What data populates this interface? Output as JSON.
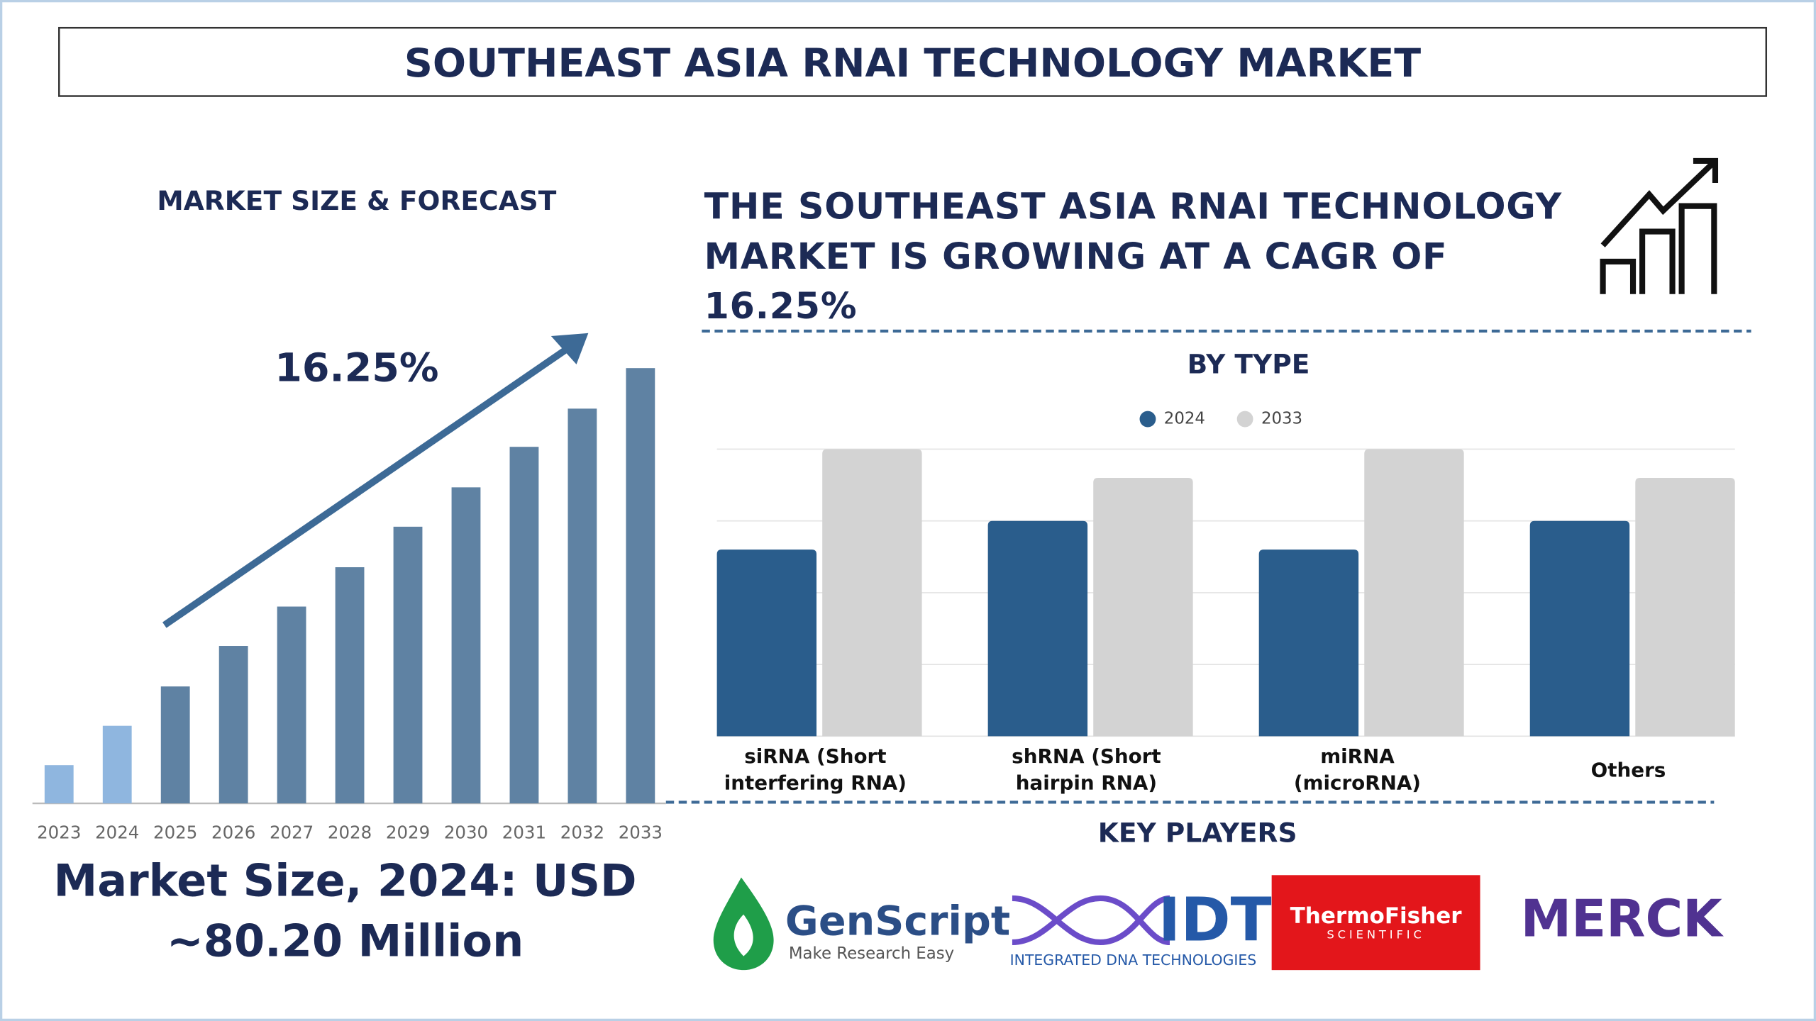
{
  "title": "SOUTHEAST ASIA RNAI TECHNOLOGY MARKET",
  "headline": "THE SOUTHEAST ASIA RNAI TECHNOLOGY MARKET IS GROWING AT A CAGR OF 16.25%",
  "market_size": "Market Size, 2024: USD ~80.20 Million",
  "chart_data": [
    {
      "type": "bar",
      "title": "MARKET SIZE & FORECAST",
      "annotation": "16.25%",
      "categories": [
        "2023",
        "2024",
        "2025",
        "2026",
        "2027",
        "2028",
        "2029",
        "2030",
        "2031",
        "2032",
        "2033"
      ],
      "values": [
        33,
        67,
        101,
        136,
        170,
        204,
        239,
        273,
        308,
        341,
        376
      ],
      "colors": [
        "#8fb6df",
        "#8fb6df",
        "#5f82a3",
        "#5f82a3",
        "#5f82a3",
        "#5f82a3",
        "#5f82a3",
        "#5f82a3",
        "#5f82a3",
        "#5f82a3",
        "#5f82a3"
      ]
    },
    {
      "type": "grouped-bar",
      "title": "BY TYPE",
      "categories": [
        "siRNA (Short interfering RNA)",
        "shRNA (Short hairpin RNA)",
        "miRNA (microRNA)",
        "Others"
      ],
      "series": [
        {
          "name": "2024",
          "color": "#2a5d8c",
          "values": [
            2.6,
            3.0,
            2.6,
            3.0
          ]
        },
        {
          "name": "2033",
          "color": "#d3d3d3",
          "values": [
            4.0,
            3.6,
            4.0,
            3.6
          ]
        }
      ],
      "ylim": [
        0,
        4
      ],
      "yticks": [
        0,
        1,
        2,
        3,
        4
      ],
      "grid": true
    }
  ],
  "key_players": {
    "title": "KEY PLAYERS",
    "logos": [
      {
        "name": "GenScript",
        "tagline": "Make Research Easy"
      },
      {
        "name": "IDT",
        "tagline": "INTEGRATED DNA TECHNOLOGIES"
      },
      {
        "name": "ThermoFisher",
        "tagline": "SCIENTIFIC"
      },
      {
        "name": "MERCK"
      }
    ]
  }
}
